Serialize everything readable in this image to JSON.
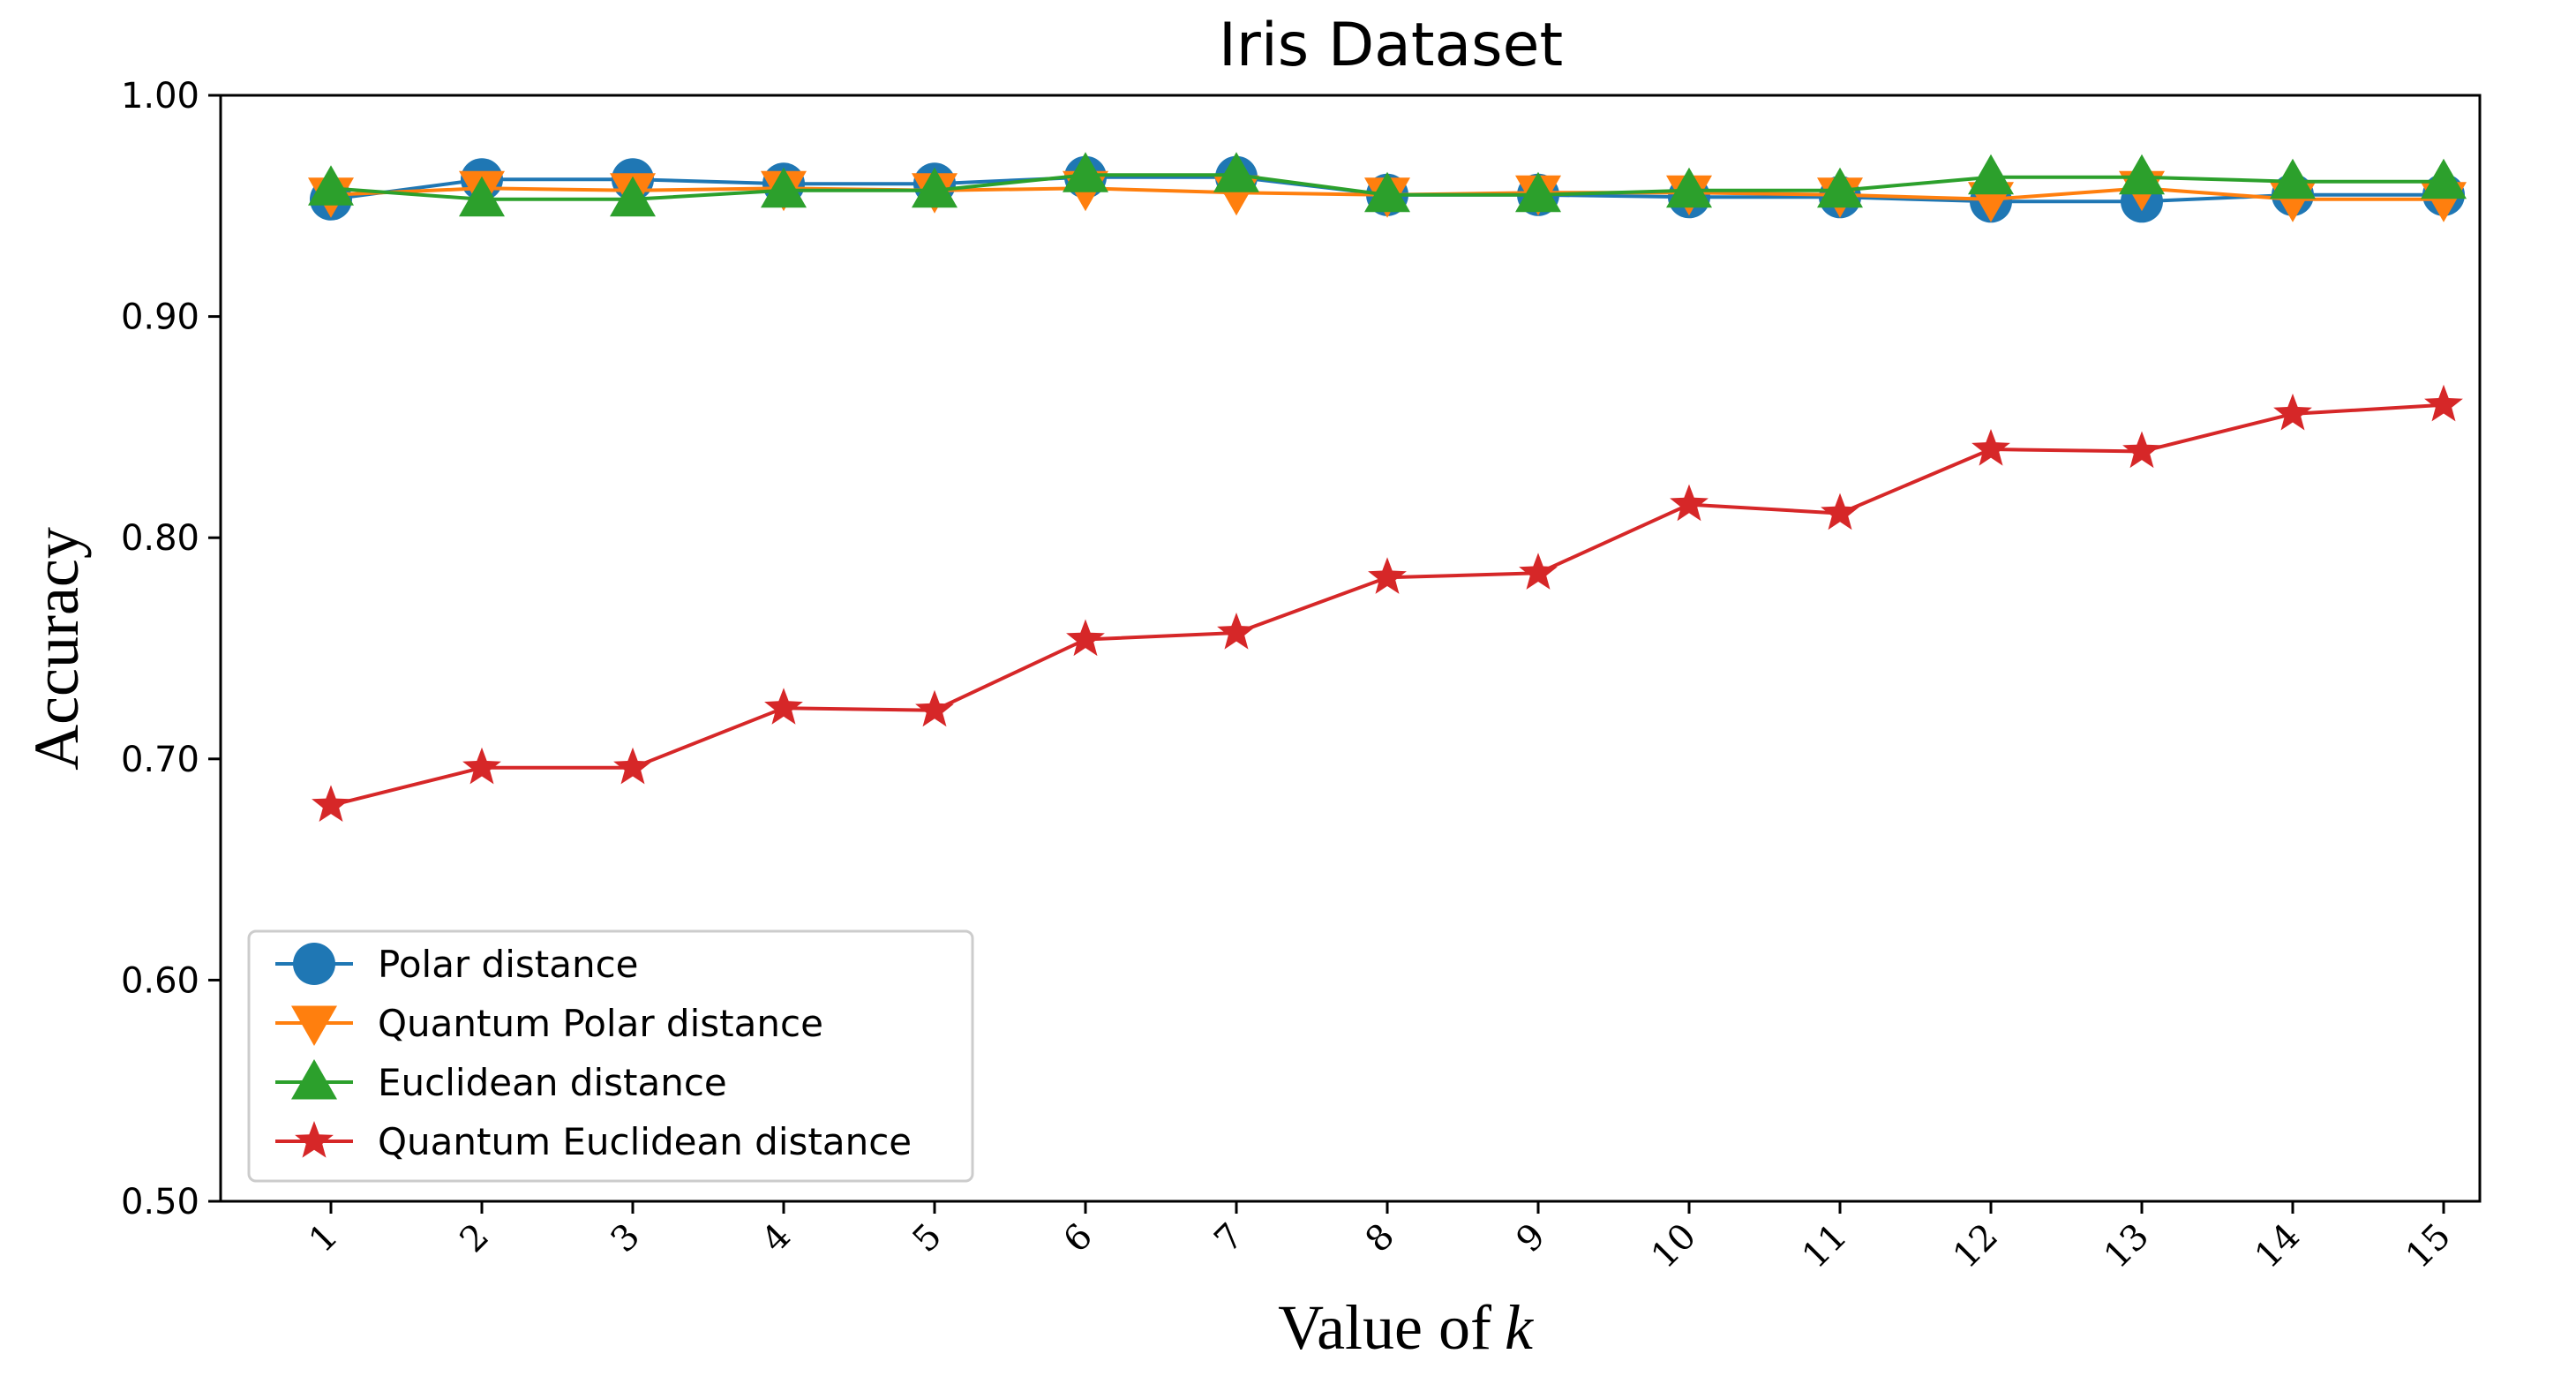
{
  "chart_data": {
    "type": "line",
    "title": "Iris Dataset",
    "xlabel": "Value of",
    "xlabel_var": "k",
    "ylabel": "Accuracy",
    "ylim": [
      0.5,
      1.0
    ],
    "yticks": [
      0.5,
      0.6,
      0.7,
      0.8,
      0.9,
      1.0
    ],
    "ytick_labels": [
      "0.50",
      "0.60",
      "0.70",
      "0.80",
      "0.90",
      "1.00"
    ],
    "x": [
      1,
      2,
      3,
      4,
      5,
      6,
      7,
      8,
      9,
      10,
      11,
      12,
      13,
      14,
      15
    ],
    "x_labels": [
      "1",
      "2",
      "3",
      "4",
      "5",
      "6",
      "7",
      "8",
      "9",
      "10",
      "11",
      "12",
      "13",
      "14",
      "15"
    ],
    "grid": false,
    "legend_position": "lower-left",
    "series": [
      {
        "name": "Polar distance",
        "color": "#1f77b4",
        "marker": "circle",
        "values": [
          0.953,
          0.962,
          0.962,
          0.96,
          0.96,
          0.963,
          0.963,
          0.955,
          0.955,
          0.954,
          0.954,
          0.952,
          0.952,
          0.955,
          0.955
        ]
      },
      {
        "name": "Quantum Polar distance",
        "color": "#ff7f0e",
        "marker": "triangle-down",
        "values": [
          0.955,
          0.958,
          0.957,
          0.958,
          0.957,
          0.958,
          0.956,
          0.955,
          0.956,
          0.956,
          0.955,
          0.953,
          0.958,
          0.953,
          0.953
        ]
      },
      {
        "name": "Euclidean distance",
        "color": "#2ca02c",
        "marker": "triangle-up",
        "values": [
          0.958,
          0.953,
          0.953,
          0.957,
          0.957,
          0.964,
          0.964,
          0.955,
          0.955,
          0.957,
          0.957,
          0.963,
          0.963,
          0.961,
          0.961
        ]
      },
      {
        "name": "Quantum Euclidean distance",
        "color": "#d62728",
        "marker": "star",
        "values": [
          0.679,
          0.696,
          0.696,
          0.723,
          0.722,
          0.754,
          0.757,
          0.782,
          0.784,
          0.815,
          0.811,
          0.84,
          0.839,
          0.856,
          0.86
        ]
      }
    ]
  }
}
